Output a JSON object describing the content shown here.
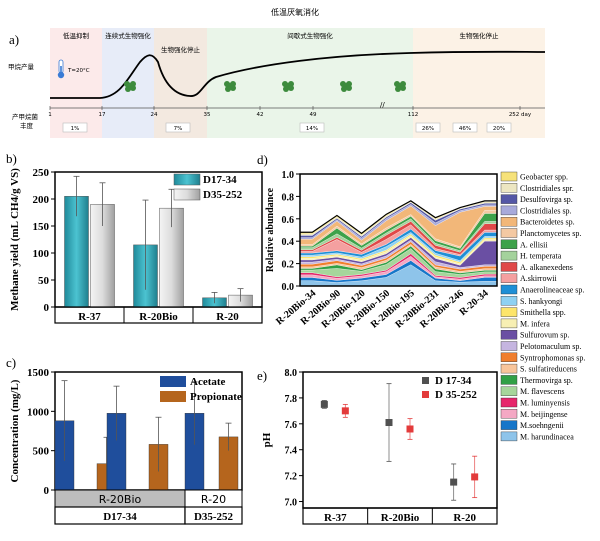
{
  "title": "低温厌氧消化",
  "panel_a": {
    "label": "a)",
    "phases": [
      {
        "name": "低温抑制",
        "x0": 1,
        "x1": 17,
        "color": "#fbe3e3"
      },
      {
        "name": "连续式生物强化",
        "x0": 17,
        "x1": 24,
        "color": "#dfe6f6"
      },
      {
        "name": "生物强化停止",
        "x0": 24,
        "x1": 35,
        "color": "#efe1d6"
      },
      {
        "name": "间歇式生物强化",
        "x0": 35,
        "x1": 112,
        "color": "#e3f1e1"
      },
      {
        "name": "生物强化停止",
        "x0": 112,
        "x1": 252,
        "color": "#fbeedd"
      }
    ],
    "row1_label": "甲烷产量",
    "row2_label": "产甲烷菌\n丰度",
    "temperature": "T=20°C",
    "day_ticks": [
      "1",
      "17",
      "24",
      "35",
      "42",
      "49",
      "112",
      "252 day"
    ],
    "abundances": [
      "1%",
      "7%",
      "14%",
      "26%",
      "46%",
      "20%"
    ]
  },
  "panel_b": {
    "label": "b)",
    "chart_data": {
      "type": "bar",
      "categories": [
        "R-37",
        "R-20Bio",
        "R-20"
      ],
      "series": [
        {
          "name": "D17-34",
          "values": [
            205,
            115,
            17
          ],
          "errors": [
            37,
            83,
            10
          ],
          "color": "#2ba7b8"
        },
        {
          "name": "D35-252",
          "values": [
            190,
            183,
            22
          ],
          "errors": [
            40,
            35,
            12
          ],
          "color": "#d9d9d9"
        }
      ],
      "ylabel": "Methane yield (mL CH4/g VS)",
      "ylim": [
        0,
        250
      ],
      "yticks": [
        "0",
        "50",
        "100",
        "150",
        "200",
        "250"
      ]
    }
  },
  "panel_c": {
    "label": "c)",
    "chart_data": {
      "type": "bar",
      "categories": [
        "R-20Bio",
        "R-20Bio",
        "R-20"
      ],
      "series": [
        {
          "name": "Acetate",
          "values": [
            880,
            975,
            975
          ],
          "errors": [
            510,
            345,
            400
          ],
          "color": "#1f4e9c"
        },
        {
          "name": "Propionate",
          "values": [
            335,
            580,
            675
          ],
          "errors": [
            335,
            345,
            175
          ],
          "color": "#b5651d"
        }
      ],
      "ylabel": "Concentration (mg/L)",
      "ylim": [
        0,
        1500
      ],
      "yticks": [
        "0",
        "500",
        "1000",
        "1500"
      ],
      "group_labels": [
        "R-20Bio",
        "R-20"
      ],
      "period_labels": [
        "D17-34",
        "D35-252"
      ]
    }
  },
  "panel_d": {
    "label": "d)",
    "chart_data": {
      "type": "area",
      "categories": [
        "R-20Bio-34",
        "R-20Bio-90",
        "R-20Bio-120",
        "R-20Bio-150",
        "R-20Bio-195",
        "R-20Bio-231",
        "R-20Bio-246",
        "R-20-34"
      ],
      "totals": [
        0.48,
        0.63,
        0.47,
        0.64,
        0.76,
        0.61,
        0.7,
        0.76
      ],
      "ylabel": "Relative abundance",
      "ylim": [
        0,
        1.0
      ],
      "yticks": [
        "0.0",
        "0.2",
        "0.4",
        "0.6",
        "0.8",
        "1.0"
      ],
      "legend": [
        {
          "name": "Geobacter spp.",
          "color": "#f6e27a"
        },
        {
          "name": "Clostridiales spr.",
          "color": "#ece6c2"
        },
        {
          "name": "Desulfovirga sp.",
          "color": "#5457a6"
        },
        {
          "name": "Clostridiales sp.",
          "color": "#a8aadb"
        },
        {
          "name": "Bacteroidetes sp.",
          "color": "#f2b779"
        },
        {
          "name": "Planctomycetes sp.",
          "color": "#f4c9a3"
        },
        {
          "name": "A. ellisii",
          "color": "#3da24a"
        },
        {
          "name": "H. temperata",
          "color": "#a4d29c"
        },
        {
          "name": "A. alkanexedens",
          "color": "#e04848"
        },
        {
          "name": "A.skirrowii",
          "color": "#f4a0a0"
        },
        {
          "name": "Anaerolineaceae sp.",
          "color": "#1e8fd6"
        },
        {
          "name": "S. hankyongi",
          "color": "#8fd1f2"
        },
        {
          "name": "Smithella spp.",
          "color": "#fde56b"
        },
        {
          "name": "M. infera",
          "color": "#f7efb3"
        },
        {
          "name": "Sulfurovum sp.",
          "color": "#6a4fa3"
        },
        {
          "name": "Pelotomaculum sp.",
          "color": "#c5b5e0"
        },
        {
          "name": "Syntrophomonas sp.",
          "color": "#f07f2e"
        },
        {
          "name": "S. sulfatireducens",
          "color": "#f8c59b"
        },
        {
          "name": "Thermovirga sp.",
          "color": "#31a046"
        },
        {
          "name": "M. flavescens",
          "color": "#a6d69b"
        },
        {
          "name": "M. luminyensis",
          "color": "#e6266b"
        },
        {
          "name": "M. beijingense",
          "color": "#f4a8c4"
        },
        {
          "name": "M.soehngenii",
          "color": "#1676c9"
        },
        {
          "name": "M. harundinacea",
          "color": "#8ec4ea"
        }
      ]
    }
  },
  "panel_e": {
    "label": "e)",
    "chart_data": {
      "type": "scatter",
      "categories": [
        "R-37",
        "R-20Bio",
        "R-20"
      ],
      "series": [
        {
          "name": "D 17-34",
          "values": [
            7.75,
            7.61,
            7.15
          ],
          "errors": [
            0.03,
            0.3,
            0.14
          ],
          "color": "#505050"
        },
        {
          "name": "D 35-252",
          "values": [
            7.7,
            7.56,
            7.19
          ],
          "errors": [
            0.05,
            0.08,
            0.16
          ],
          "color": "#e33b3b"
        }
      ],
      "ylabel": "pH",
      "ylim": [
        6.95,
        8.0
      ],
      "yticks": [
        "7.0",
        "7.2",
        "7.4",
        "7.6",
        "7.8",
        "8.0"
      ]
    }
  }
}
